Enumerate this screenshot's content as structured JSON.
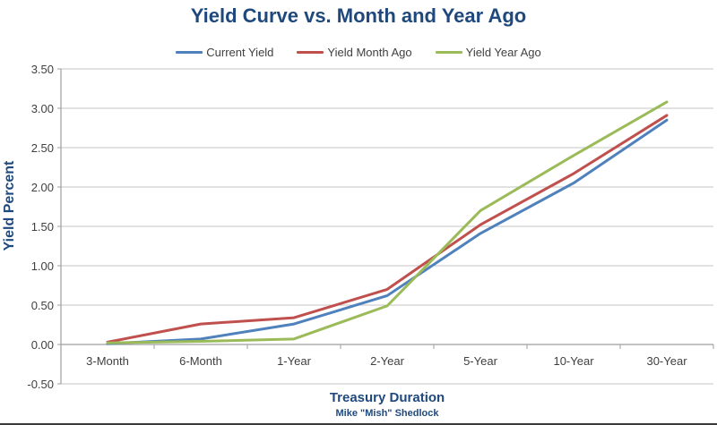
{
  "title": "Yield Curve vs. Month and Year Ago",
  "colors": {
    "title_text": "#1F497D",
    "axis_text": "#3F3F3F",
    "legend_text": "#404040",
    "gridline": "#C6C6C6",
    "axis_line": "#9E9E9E",
    "series_blue": "#4F81BD",
    "series_red": "#C0504D",
    "series_green": "#9BBB59"
  },
  "chart_data": {
    "type": "line",
    "categories": [
      "3-Month",
      "6-Month",
      "1-Year",
      "2-Year",
      "5-Year",
      "10-Year",
      "30-Year"
    ],
    "series": [
      {
        "name": "Current Yield",
        "color": "#4F81BD",
        "values": [
          0.01,
          0.07,
          0.26,
          0.62,
          1.41,
          2.05,
          2.85
        ]
      },
      {
        "name": "Yield Month Ago",
        "color": "#C0504D",
        "values": [
          0.03,
          0.26,
          0.34,
          0.7,
          1.52,
          2.17,
          2.91
        ]
      },
      {
        "name": "Yield Year Ago",
        "color": "#9BBB59",
        "values": [
          0.02,
          0.04,
          0.07,
          0.49,
          1.7,
          2.4,
          3.08
        ]
      }
    ],
    "title": "Yield Curve vs. Month and Year Ago",
    "xlabel": "Treasury Duration",
    "ylabel": "Yield Percent",
    "caption": "Mike \"Mish\" Shedlock",
    "ylim": [
      -0.5,
      3.5
    ],
    "ytick_step": 0.5,
    "y_tick_labels": [
      "3.50",
      "3.00",
      "2.50",
      "2.00",
      "1.50",
      "1.00",
      "0.50",
      "0.00",
      "-0.50"
    ],
    "grid": true,
    "legend_position": "top-center"
  }
}
